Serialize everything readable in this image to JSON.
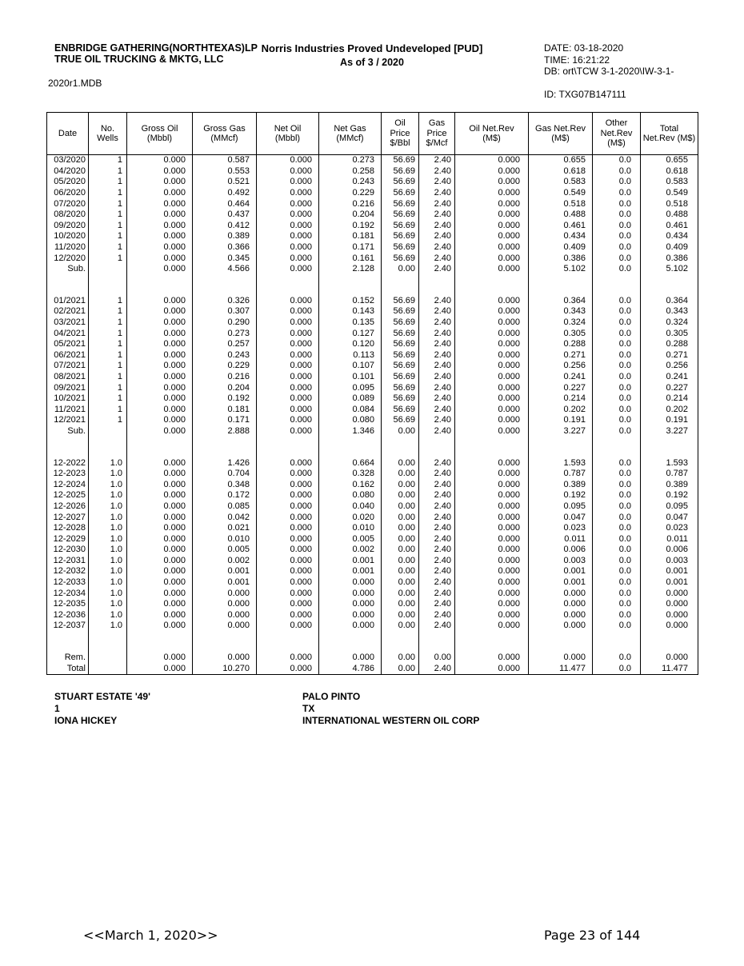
{
  "header": {
    "company_line1": "ENBRIDGE GATHERING(NORTHTEXAS)LP",
    "company_line2": "TRUE OIL TRUCKING & MKTG, LLC",
    "title": "Norris Industries Proved Undeveloped [PUD]",
    "subtitle": "As of 3 / 2020",
    "date_line": "DATE: 03-18-2020",
    "time_line": "TIME: 16:21:22",
    "db_line": "DB: ort\\TCW 3-1-2020\\IW-3-1-",
    "id_line": "ID: TXG07B147111",
    "database_file": "2020r1.MDB"
  },
  "table": {
    "columns": [
      "Date",
      "No.\nWells",
      "Gross Oil\n(Mbbl)",
      "Gross Gas\n(MMcf)",
      "Net Oil\n(Mbbl)",
      "Net Gas\n(MMcf)",
      "Oil\nPrice\n$/Bbl",
      "Gas\nPrice\n$/Mcf",
      "Oil  Net.Rev\n(M$)",
      "Gas Net.Rev\n(M$)",
      "Other\nNet.Rev\n(M$)",
      "Total\nNet.Rev (M$)"
    ],
    "rows": [
      [
        "03/2020",
        "1",
        "0.000",
        "0.587",
        "0.000",
        "0.273",
        "56.69",
        "2.40",
        "0.000",
        "0.655",
        "0.0",
        "0.655"
      ],
      [
        "04/2020",
        "1",
        "0.000",
        "0.553",
        "0.000",
        "0.258",
        "56.69",
        "2.40",
        "0.000",
        "0.618",
        "0.0",
        "0.618"
      ],
      [
        "05/2020",
        "1",
        "0.000",
        "0.521",
        "0.000",
        "0.243",
        "56.69",
        "2.40",
        "0.000",
        "0.583",
        "0.0",
        "0.583"
      ],
      [
        "06/2020",
        "1",
        "0.000",
        "0.492",
        "0.000",
        "0.229",
        "56.69",
        "2.40",
        "0.000",
        "0.549",
        "0.0",
        "0.549"
      ],
      [
        "07/2020",
        "1",
        "0.000",
        "0.464",
        "0.000",
        "0.216",
        "56.69",
        "2.40",
        "0.000",
        "0.518",
        "0.0",
        "0.518"
      ],
      [
        "08/2020",
        "1",
        "0.000",
        "0.437",
        "0.000",
        "0.204",
        "56.69",
        "2.40",
        "0.000",
        "0.488",
        "0.0",
        "0.488"
      ],
      [
        "09/2020",
        "1",
        "0.000",
        "0.412",
        "0.000",
        "0.192",
        "56.69",
        "2.40",
        "0.000",
        "0.461",
        "0.0",
        "0.461"
      ],
      [
        "10/2020",
        "1",
        "0.000",
        "0.389",
        "0.000",
        "0.181",
        "56.69",
        "2.40",
        "0.000",
        "0.434",
        "0.0",
        "0.434"
      ],
      [
        "11/2020",
        "1",
        "0.000",
        "0.366",
        "0.000",
        "0.171",
        "56.69",
        "2.40",
        "0.000",
        "0.409",
        "0.0",
        "0.409"
      ],
      [
        "12/2020",
        "1",
        "0.000",
        "0.345",
        "0.000",
        "0.161",
        "56.69",
        "2.40",
        "0.000",
        "0.386",
        "0.0",
        "0.386"
      ],
      [
        "Sub.",
        "",
        "0.000",
        "4.566",
        "0.000",
        "2.128",
        "0.00",
        "2.40",
        "0.000",
        "5.102",
        "0.0",
        "5.102"
      ],
      null,
      [
        "01/2021",
        "1",
        "0.000",
        "0.326",
        "0.000",
        "0.152",
        "56.69",
        "2.40",
        "0.000",
        "0.364",
        "0.0",
        "0.364"
      ],
      [
        "02/2021",
        "1",
        "0.000",
        "0.307",
        "0.000",
        "0.143",
        "56.69",
        "2.40",
        "0.000",
        "0.343",
        "0.0",
        "0.343"
      ],
      [
        "03/2021",
        "1",
        "0.000",
        "0.290",
        "0.000",
        "0.135",
        "56.69",
        "2.40",
        "0.000",
        "0.324",
        "0.0",
        "0.324"
      ],
      [
        "04/2021",
        "1",
        "0.000",
        "0.273",
        "0.000",
        "0.127",
        "56.69",
        "2.40",
        "0.000",
        "0.305",
        "0.0",
        "0.305"
      ],
      [
        "05/2021",
        "1",
        "0.000",
        "0.257",
        "0.000",
        "0.120",
        "56.69",
        "2.40",
        "0.000",
        "0.288",
        "0.0",
        "0.288"
      ],
      [
        "06/2021",
        "1",
        "0.000",
        "0.243",
        "0.000",
        "0.113",
        "56.69",
        "2.40",
        "0.000",
        "0.271",
        "0.0",
        "0.271"
      ],
      [
        "07/2021",
        "1",
        "0.000",
        "0.229",
        "0.000",
        "0.107",
        "56.69",
        "2.40",
        "0.000",
        "0.256",
        "0.0",
        "0.256"
      ],
      [
        "08/2021",
        "1",
        "0.000",
        "0.216",
        "0.000",
        "0.101",
        "56.69",
        "2.40",
        "0.000",
        "0.241",
        "0.0",
        "0.241"
      ],
      [
        "09/2021",
        "1",
        "0.000",
        "0.204",
        "0.000",
        "0.095",
        "56.69",
        "2.40",
        "0.000",
        "0.227",
        "0.0",
        "0.227"
      ],
      [
        "10/2021",
        "1",
        "0.000",
        "0.192",
        "0.000",
        "0.089",
        "56.69",
        "2.40",
        "0.000",
        "0.214",
        "0.0",
        "0.214"
      ],
      [
        "11/2021",
        "1",
        "0.000",
        "0.181",
        "0.000",
        "0.084",
        "56.69",
        "2.40",
        "0.000",
        "0.202",
        "0.0",
        "0.202"
      ],
      [
        "12/2021",
        "1",
        "0.000",
        "0.171",
        "0.000",
        "0.080",
        "56.69",
        "2.40",
        "0.000",
        "0.191",
        "0.0",
        "0.191"
      ],
      [
        "Sub.",
        "",
        "0.000",
        "2.888",
        "0.000",
        "1.346",
        "0.00",
        "2.40",
        "0.000",
        "3.227",
        "0.0",
        "3.227"
      ],
      null,
      [
        "12-2022",
        "1.0",
        "0.000",
        "1.426",
        "0.000",
        "0.664",
        "0.00",
        "2.40",
        "0.000",
        "1.593",
        "0.0",
        "1.593"
      ],
      [
        "12-2023",
        "1.0",
        "0.000",
        "0.704",
        "0.000",
        "0.328",
        "0.00",
        "2.40",
        "0.000",
        "0.787",
        "0.0",
        "0.787"
      ],
      [
        "12-2024",
        "1.0",
        "0.000",
        "0.348",
        "0.000",
        "0.162",
        "0.00",
        "2.40",
        "0.000",
        "0.389",
        "0.0",
        "0.389"
      ],
      [
        "12-2025",
        "1.0",
        "0.000",
        "0.172",
        "0.000",
        "0.080",
        "0.00",
        "2.40",
        "0.000",
        "0.192",
        "0.0",
        "0.192"
      ],
      [
        "12-2026",
        "1.0",
        "0.000",
        "0.085",
        "0.000",
        "0.040",
        "0.00",
        "2.40",
        "0.000",
        "0.095",
        "0.0",
        "0.095"
      ],
      [
        "12-2027",
        "1.0",
        "0.000",
        "0.042",
        "0.000",
        "0.020",
        "0.00",
        "2.40",
        "0.000",
        "0.047",
        "0.0",
        "0.047"
      ],
      [
        "12-2028",
        "1.0",
        "0.000",
        "0.021",
        "0.000",
        "0.010",
        "0.00",
        "2.40",
        "0.000",
        "0.023",
        "0.0",
        "0.023"
      ],
      [
        "12-2029",
        "1.0",
        "0.000",
        "0.010",
        "0.000",
        "0.005",
        "0.00",
        "2.40",
        "0.000",
        "0.011",
        "0.0",
        "0.011"
      ],
      [
        "12-2030",
        "1.0",
        "0.000",
        "0.005",
        "0.000",
        "0.002",
        "0.00",
        "2.40",
        "0.000",
        "0.006",
        "0.0",
        "0.006"
      ],
      [
        "12-2031",
        "1.0",
        "0.000",
        "0.002",
        "0.000",
        "0.001",
        "0.00",
        "2.40",
        "0.000",
        "0.003",
        "0.0",
        "0.003"
      ],
      [
        "12-2032",
        "1.0",
        "0.000",
        "0.001",
        "0.000",
        "0.001",
        "0.00",
        "2.40",
        "0.000",
        "0.001",
        "0.0",
        "0.001"
      ],
      [
        "12-2033",
        "1.0",
        "0.000",
        "0.001",
        "0.000",
        "0.000",
        "0.00",
        "2.40",
        "0.000",
        "0.001",
        "0.0",
        "0.001"
      ],
      [
        "12-2034",
        "1.0",
        "0.000",
        "0.000",
        "0.000",
        "0.000",
        "0.00",
        "2.40",
        "0.000",
        "0.000",
        "0.0",
        "0.000"
      ],
      [
        "12-2035",
        "1.0",
        "0.000",
        "0.000",
        "0.000",
        "0.000",
        "0.00",
        "2.40",
        "0.000",
        "0.000",
        "0.0",
        "0.000"
      ],
      [
        "12-2036",
        "1.0",
        "0.000",
        "0.000",
        "0.000",
        "0.000",
        "0.00",
        "2.40",
        "0.000",
        "0.000",
        "0.0",
        "0.000"
      ],
      [
        "12-2037",
        "1.0",
        "0.000",
        "0.000",
        "0.000",
        "0.000",
        "0.00",
        "2.40",
        "0.000",
        "0.000",
        "0.0",
        "0.000"
      ],
      null,
      [
        "Rem.",
        "",
        "0.000",
        "0.000",
        "0.000",
        "0.000",
        "0.00",
        "0.00",
        "0.000",
        "0.000",
        "0.0",
        "0.000"
      ],
      [
        "Total",
        "",
        "0.000",
        "10.270",
        "0.000",
        "4.786",
        "0.00",
        "2.40",
        "0.000",
        "11.477",
        "0.0",
        "11.477"
      ]
    ]
  },
  "well_info": {
    "left": [
      "STUART ESTATE '49'",
      "1",
      "IONA HICKEY"
    ],
    "right": [
      "PALO PINTO",
      "TX",
      "INTERNATIONAL WESTERN OIL CORP"
    ]
  },
  "footer": {
    "date_nav": "<<March 1, 2020>>",
    "page_label": "Page 23 of 144"
  }
}
